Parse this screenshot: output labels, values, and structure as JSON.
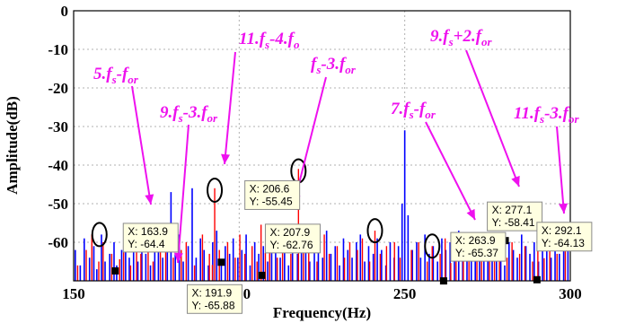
{
  "chart_data": {
    "type": "line",
    "xlabel": "Frequency(Hz)",
    "ylabel": "Amplitude(dB)",
    "xlim": [
      150,
      300
    ],
    "ylim": [
      -70,
      0
    ],
    "xticks": [
      150,
      200,
      250,
      300
    ],
    "yticks": [
      0,
      -10,
      -20,
      -30,
      -40,
      -50,
      -60
    ],
    "grid": true,
    "colors": {
      "series_a": "#0000ff",
      "series_b": "#ff0000",
      "annotation": "#ee11ee",
      "marker": "#000000",
      "circle": "#000000"
    },
    "series": [
      {
        "color": "#0000ff",
        "x": [
          150.5,
          152.0,
          153.2,
          154.8,
          156.1,
          157.0,
          158.4,
          159.5,
          160.9,
          162.2,
          163.0,
          164.5,
          165.7,
          166.8,
          168.1,
          169.4,
          170.6,
          171.8,
          173.2,
          174.5,
          175.6,
          176.9,
          178.3,
          179.4,
          180.7,
          181.9,
          183.1,
          184.6,
          185.8,
          187.0,
          188.3,
          189.4,
          190.7,
          192.0,
          193.2,
          194.6,
          195.8,
          197.1,
          198.2,
          199.6,
          200.8,
          202.1,
          203.3,
          204.7,
          205.9,
          207.3,
          208.6,
          209.8,
          211.0,
          212.4,
          213.7,
          214.9,
          216.1,
          217.6,
          218.8,
          220.1,
          221.3,
          222.7,
          223.9,
          225.2,
          226.4,
          227.7,
          229.0,
          230.3,
          231.5,
          232.8,
          234.1,
          235.4,
          236.6,
          237.9,
          239.1,
          240.5,
          241.7,
          243.0,
          244.3,
          245.6,
          246.8,
          248.1,
          249.2,
          250.0,
          251.0,
          252.3,
          253.6,
          254.8,
          256.1,
          257.4,
          258.6,
          259.9,
          261.2,
          262.4,
          263.7,
          265.0,
          266.3,
          267.5,
          268.8,
          270.1,
          271.3,
          272.6,
          273.9,
          275.1,
          276.4,
          277.7,
          279.0,
          280.2,
          281.5,
          282.8,
          284.0,
          285.3,
          286.6,
          287.8,
          289.1,
          290.4,
          291.6,
          292.9,
          294.2,
          295.4,
          296.7,
          298.0,
          299.3
        ],
        "y": [
          -62,
          -66,
          -59,
          -64,
          -61,
          -67,
          -58,
          -65,
          -63,
          -60,
          -66,
          -62,
          -57,
          -64,
          -61,
          -65,
          -59,
          -63,
          -66,
          -56,
          -62,
          -64,
          -60,
          -47,
          -63,
          -58,
          -65,
          -61,
          -46,
          -64,
          -59,
          -62,
          -66,
          -60,
          -57,
          -65,
          -61,
          -63,
          -59,
          -64,
          -62,
          -58,
          -66,
          -60,
          -63,
          -61,
          -65,
          -57,
          -62,
          -64,
          -60,
          -66,
          -59,
          -63,
          -61,
          -58,
          -65,
          -62,
          -60,
          -64,
          -57,
          -63,
          -61,
          -66,
          -59,
          -62,
          -64,
          -60,
          -58,
          -65,
          -61,
          -63,
          -59,
          -62,
          -66,
          -60,
          -64,
          -61,
          -50,
          -31,
          -53,
          -62,
          -60,
          -64,
          -58,
          -63,
          -61,
          -65,
          -59,
          -62,
          -60,
          -64,
          -57,
          -63,
          -61,
          -65,
          -60,
          -62,
          -58,
          -64,
          -61,
          -63,
          -59,
          -66,
          -60,
          -62,
          -64,
          -58,
          -61,
          -63,
          -60,
          -65,
          -59,
          -62,
          -64,
          -60,
          -63,
          -61,
          -62
        ]
      },
      {
        "color": "#ff0000",
        "x": [
          151.2,
          153.8,
          155.5,
          157.6,
          158.9,
          161.5,
          163.9,
          165.1,
          167.2,
          169.0,
          170.3,
          172.5,
          174.0,
          176.2,
          177.8,
          180.1,
          182.5,
          184.0,
          186.5,
          188.9,
          191.0,
          191.9,
          192.6,
          194.0,
          196.5,
          198.8,
          200.2,
          201.7,
          203.9,
          205.4,
          206.6,
          207.9,
          209.2,
          211.5,
          213.1,
          215.6,
          217.9,
          219.4,
          221.0,
          223.5,
          225.7,
          227.2,
          229.6,
          231.8,
          233.4,
          235.7,
          237.2,
          239.4,
          241.0,
          242.6,
          244.5,
          246.9,
          248.6,
          252.0,
          254.2,
          256.8,
          258.3,
          260.7,
          262.2,
          263.9,
          265.5,
          267.7,
          269.4,
          271.8,
          273.2,
          275.6,
          277.1,
          278.6,
          280.9,
          282.4,
          284.7,
          286.3,
          288.6,
          290.2,
          292.1,
          293.8,
          296.0,
          298.5
        ],
        "y": [
          -66,
          -62,
          -58,
          -65,
          -60,
          -63,
          -64.4,
          -61,
          -66,
          -57,
          -63,
          -60,
          -65,
          -61,
          -59,
          -64,
          -62,
          -60,
          -66,
          -58,
          -63,
          -65.88,
          -46,
          -62,
          -60,
          -64,
          -58,
          -63,
          -61,
          -65,
          -55.45,
          -62.76,
          -60,
          -64,
          -59,
          -63,
          -41,
          -62,
          -60,
          -65,
          -58,
          -63,
          -61,
          -64,
          -60,
          -62,
          -59,
          -65,
          -57,
          -63,
          -61,
          -60,
          -64,
          -62,
          -60,
          -65,
          -61,
          -63,
          -59,
          -65.37,
          -62,
          -60,
          -64,
          -61,
          -63,
          -59,
          -58.41,
          -62,
          -64,
          -60,
          -63,
          -61,
          -65,
          -62,
          -64.13,
          -60,
          -63,
          -61
        ]
      }
    ],
    "datatips": [
      {
        "x_text": "X: 163.9",
        "y_text": "Y: -64.4",
        "x": 163.9,
        "y": -64.4
      },
      {
        "x_text": "X: 191.9",
        "y_text": "Y: -65.88",
        "x": 191.9,
        "y": -65.88
      },
      {
        "x_text": "X: 206.6",
        "y_text": "Y: -55.45",
        "x": 206.6,
        "y": -55.45
      },
      {
        "x_text": "X: 207.9",
        "y_text": "Y: -62.76",
        "x": 207.9,
        "y": -62.76
      },
      {
        "x_text": "X: 263.9",
        "y_text": "Y: -65.37",
        "x": 263.9,
        "y": -65.37
      },
      {
        "x_text": "X: 277.1",
        "y_text": "Y: -58.41",
        "x": 277.1,
        "y": -58.41
      },
      {
        "x_text": "X: 292.1",
        "y_text": "Y: -64.13",
        "x": 292.1,
        "y": -64.13
      }
    ],
    "annotations": [
      {
        "parts": [
          [
            "5.f",
            "main"
          ],
          [
            "s",
            "sub"
          ],
          [
            "-f",
            "main"
          ],
          [
            "or",
            "sub"
          ]
        ],
        "target_x": 163.9,
        "target_y": -64.4
      },
      {
        "parts": [
          [
            "9.f",
            "main"
          ],
          [
            "s",
            "sub"
          ],
          [
            "-3.f",
            "main"
          ],
          [
            "or",
            "sub"
          ]
        ],
        "target_x": 191.9,
        "target_y": -65.88
      },
      {
        "parts": [
          [
            "11.f",
            "main"
          ],
          [
            "s",
            "sub"
          ],
          [
            "-4.f",
            "main"
          ],
          [
            "o",
            "sub"
          ]
        ],
        "target_x": 206.6,
        "target_y": -55.45
      },
      {
        "parts": [
          [
            "f",
            "main"
          ],
          [
            "s",
            "sub"
          ],
          [
            "-3.f",
            "main"
          ],
          [
            "or",
            "sub"
          ]
        ],
        "target_x": 207.9,
        "target_y": -62.76
      },
      {
        "parts": [
          [
            "9.f",
            "main"
          ],
          [
            "s",
            "sub"
          ],
          [
            "+2.f",
            "main"
          ],
          [
            "or",
            "sub"
          ]
        ],
        "target_x": 277.1,
        "target_y": -58.41
      },
      {
        "parts": [
          [
            "7.f",
            "main"
          ],
          [
            "s",
            "sub"
          ],
          [
            "-f",
            "main"
          ],
          [
            "or",
            "sub"
          ]
        ],
        "target_x": 263.9,
        "target_y": -65.37
      },
      {
        "parts": [
          [
            "11.f",
            "main"
          ],
          [
            "s",
            "sub"
          ],
          [
            "-3.f",
            "main"
          ],
          [
            "or",
            "sub"
          ]
        ],
        "target_x": 292.1,
        "target_y": -64.13
      }
    ],
    "circled_peaks": [
      {
        "x": 157.8,
        "y": -58
      },
      {
        "x": 192.6,
        "y": -46.5
      },
      {
        "x": 217.9,
        "y": -41.5
      },
      {
        "x": 241.0,
        "y": -57
      },
      {
        "x": 258.3,
        "y": -61
      }
    ]
  }
}
